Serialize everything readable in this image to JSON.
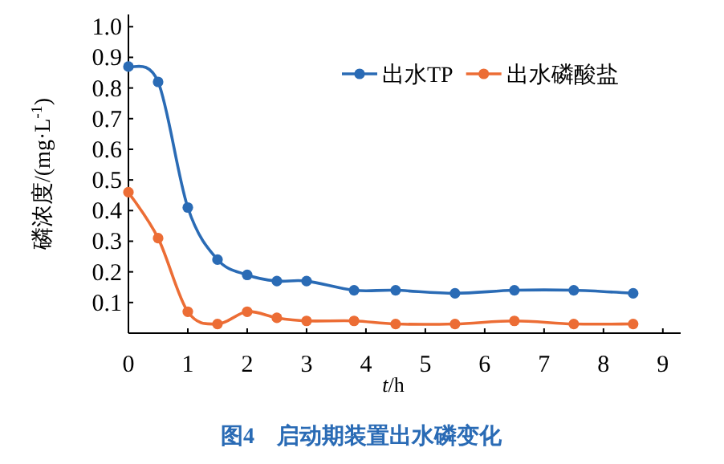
{
  "chart_data": {
    "type": "line",
    "title": "图4　启动期装置出水磷变化",
    "xlabel": "*t*/h",
    "ylabel": "磷浓度/(mg·L$^{-1}$)",
    "x": [
      0,
      0.5,
      1,
      1.5,
      2,
      2.5,
      3,
      3.8,
      4.5,
      5.5,
      6.5,
      7.5,
      8.5
    ],
    "series": [
      {
        "name": "出水TP",
        "color": "#2a6bb5",
        "values": [
          0.87,
          0.82,
          0.41,
          0.24,
          0.19,
          0.17,
          0.17,
          0.14,
          0.14,
          0.13,
          0.14,
          0.14,
          0.13
        ]
      },
      {
        "name": "出水磷酸盐",
        "color": "#ec6d35",
        "values": [
          0.46,
          0.31,
          0.07,
          0.03,
          0.07,
          0.05,
          0.04,
          0.04,
          0.03,
          0.03,
          0.04,
          0.03,
          0.03
        ]
      }
    ],
    "xlim": [
      0,
      9.3
    ],
    "ylim": [
      0,
      1.04
    ],
    "xticks": [
      0,
      1,
      2,
      3,
      4,
      5,
      6,
      7,
      8,
      9
    ],
    "yticks": [
      0.1,
      0.2,
      0.3,
      0.4,
      0.5,
      0.6,
      0.7,
      0.8,
      0.9,
      {
        "value": 1,
        "label": "1.0"
      }
    ],
    "legend": "top right",
    "marker": "circle",
    "line_style": "solid",
    "grid": false
  }
}
